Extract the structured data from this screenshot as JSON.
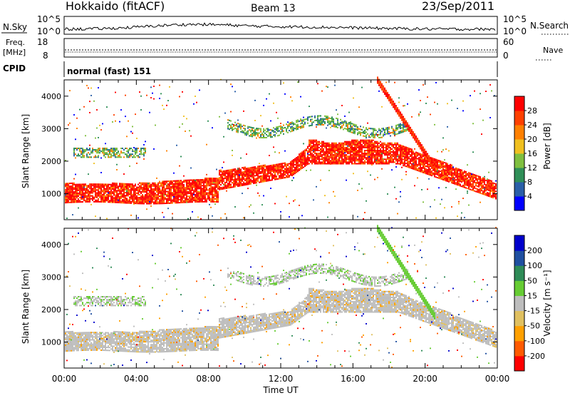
{
  "header": {
    "station": "Hokkaido (fitACF)",
    "beam": "Beam 13",
    "date": "23/Sep/2011"
  },
  "top_panels": {
    "nsky_label": "N.Sky",
    "nsky_left_ticks": [
      "10^5",
      "10^0"
    ],
    "nsearch_label": "N.Search",
    "nsearch_right_ticks": [
      "10^5",
      "10^0"
    ],
    "freq_label": "Freq.",
    "freq_unit": "[MHz]",
    "freq_ticks": [
      "18",
      "8"
    ],
    "nave_label": "Nave",
    "nave_ticks": [
      "60",
      "0"
    ],
    "cpid_label": "CPID",
    "cpid_value": "normal (fast) 151"
  },
  "colors": {
    "power_scale": [
      "#0000ff",
      "#2a5fa8",
      "#2f8f58",
      "#7fbf3f",
      "#f0c020",
      "#ff8000",
      "#ff4000",
      "#ff0000"
    ],
    "velocity_scale": [
      "#ff0000",
      "#ff5a00",
      "#ffa000",
      "#e0c060",
      "#bdbdbd",
      "#66cc33",
      "#2e8b57",
      "#1f4fa0",
      "#0000cc"
    ],
    "ground_scatter": "#bdbdbd"
  },
  "chart_data": [
    {
      "type": "heatmap",
      "name": "power-panel",
      "ylabel": "Slant Range [km]",
      "yticks": [
        "1000",
        "2000",
        "3000",
        "4000"
      ],
      "ylim": [
        200,
        4500
      ],
      "xticks": [
        "00:00",
        "04:00",
        "08:00",
        "12:00",
        "16:00",
        "20:00",
        "00:00"
      ],
      "colorbar_label": "Power [dB]",
      "colorbar_ticks": [
        "4",
        "8",
        "12",
        "16",
        "20",
        "24",
        "28"
      ],
      "colorbar_range": [
        0,
        32
      ],
      "scatter_bands": [
        {
          "from_hour": 0,
          "to_hour": 9,
          "range_low_km": 700,
          "range_high_km": 1300,
          "power_db": 28
        },
        {
          "from_hour": 9,
          "to_hour": 13,
          "range_low_km": 1300,
          "range_high_km": 1800,
          "power_db": 30
        },
        {
          "from_hour": 13,
          "to_hour": 18,
          "range_low_km": 1900,
          "range_high_km": 2700,
          "power_db": 30
        },
        {
          "from_hour": 18,
          "to_hour": 24,
          "range_low_km": 800,
          "range_high_km": 1700,
          "power_db": 24
        }
      ]
    },
    {
      "type": "heatmap",
      "name": "velocity-panel",
      "ylabel": "Slant Range [km]",
      "yticks": [
        "1000",
        "2000",
        "3000",
        "4000"
      ],
      "ylim": [
        200,
        4500
      ],
      "xticks": [
        "00:00",
        "04:00",
        "08:00",
        "12:00",
        "16:00",
        "20:00",
        "00:00"
      ],
      "xlabel": "Time UT",
      "colorbar_label": "Velocity [m s⁻¹]",
      "colorbar_ticks": [
        "200",
        "100",
        "50",
        "15",
        "-15",
        "-50",
        "-100",
        "-200"
      ],
      "colorbar_range": [
        -250,
        250
      ]
    }
  ]
}
